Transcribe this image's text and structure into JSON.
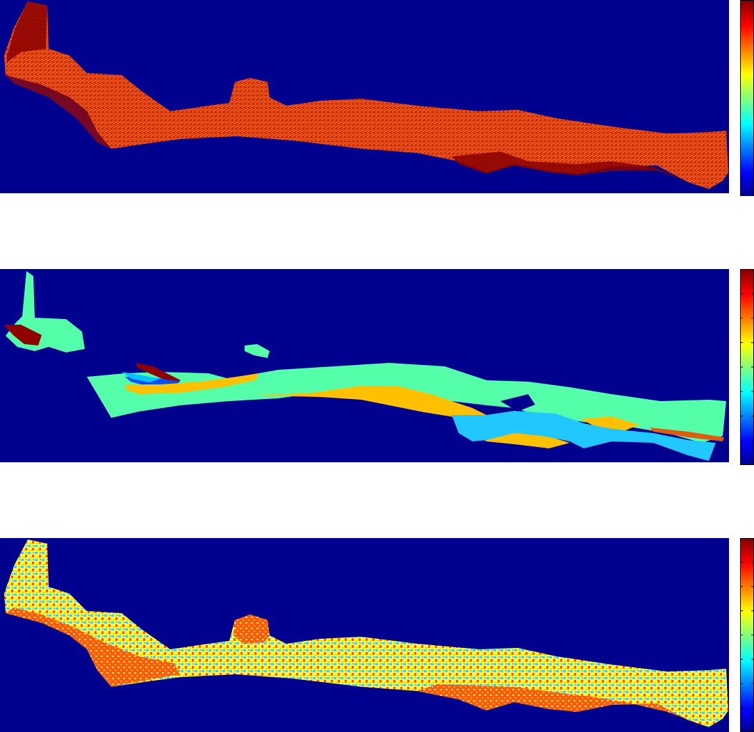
{
  "figure": {
    "background_color": "#00008f",
    "colormap": "jet",
    "colormap_stops": [
      "#00008f",
      "#0000ff",
      "#00ffff",
      "#ffff00",
      "#ff0000",
      "#800000"
    ],
    "panels": [
      {
        "name": "panel-1",
        "description_type": "continuous raster map",
        "dominant_colors": [
          "#c81e00",
          "#ff6a00",
          "#8f0000"
        ],
        "colorbar": {
          "tick_count": 0,
          "tick_labels": []
        }
      },
      {
        "name": "panel-2",
        "description_type": "categorical raster map",
        "dominant_colors": [
          "#55ffaa",
          "#ffc000",
          "#00c8ff",
          "#0050ff",
          "#8f0000",
          "#e05a10"
        ],
        "colorbar": {
          "tick_count": 9,
          "tick_labels": []
        }
      },
      {
        "name": "panel-3",
        "description_type": "classified raster map",
        "dominant_colors": [
          "#ffff30",
          "#ff5a10",
          "#40c8ff",
          "#ffd000"
        ],
        "colorbar": {
          "tick_count": 9,
          "tick_labels": []
        }
      }
    ]
  }
}
